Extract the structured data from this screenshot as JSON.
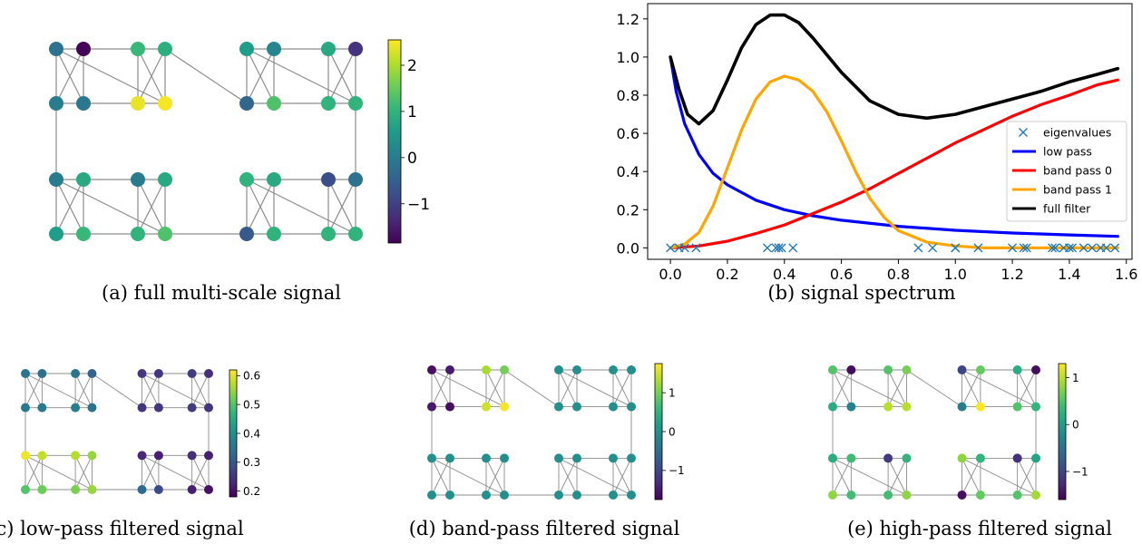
{
  "colors": {
    "edge": "#8c8c8c",
    "viridis": [
      "#440154",
      "#482878",
      "#3e4989",
      "#31688e",
      "#26828e",
      "#1f9e89",
      "#35b779",
      "#6ece58",
      "#b5de2b",
      "#fde725"
    ]
  },
  "graphs": [
    {
      "caption": "(a) full multi-scale signal",
      "colorbar": {
        "min": -1.85,
        "max": 2.55,
        "ticks": [
          {
            "v": 2,
            "label": "2"
          },
          {
            "v": 1,
            "label": "1"
          },
          {
            "v": 0,
            "label": "0"
          },
          {
            "v": -1,
            "label": "−1"
          }
        ]
      },
      "node_values": [
        -0.2,
        -1.8,
        1.1,
        0.9,
        0.6,
        0.2,
        0.8,
        -1.2,
        0,
        -0.1,
        2.4,
        2.5,
        -0.4,
        1.3,
        1.0,
        1.0,
        0,
        0.8,
        0,
        0.8,
        1.0,
        0.8,
        -0.8,
        -0.2,
        0.6,
        1.1,
        1.0,
        1.3,
        -0.6,
        1.0,
        1.0,
        1.0
      ]
    },
    {
      "caption": "(c) low-pass filtered signal",
      "colorbar": {
        "min": 0.18,
        "max": 0.62,
        "ticks": [
          {
            "v": 0.6,
            "label": "0.6"
          },
          {
            "v": 0.5,
            "label": "0.5"
          },
          {
            "v": 0.4,
            "label": "0.4"
          },
          {
            "v": 0.3,
            "label": "0.3"
          },
          {
            "v": 0.2,
            "label": "0.2"
          }
        ]
      },
      "node_values": [
        0.35,
        0.34,
        0.35,
        0.32,
        0.25,
        0.25,
        0.26,
        0.24,
        0.36,
        0.36,
        0.37,
        0.35,
        0.25,
        0.25,
        0.26,
        0.25,
        0.61,
        0.58,
        0.57,
        0.55,
        0.23,
        0.22,
        0.24,
        0.22,
        0.5,
        0.52,
        0.53,
        0.55,
        0.33,
        0.28,
        0.22,
        0.2
      ]
    },
    {
      "caption": "(d) band-pass filtered signal",
      "colorbar": {
        "min": -1.75,
        "max": 1.75,
        "ticks": [
          {
            "v": 1,
            "label": "1"
          },
          {
            "v": 0,
            "label": "0"
          },
          {
            "v": -1,
            "label": "−1"
          }
        ]
      },
      "node_values": [
        -1.6,
        -1.5,
        1.3,
        1.0,
        0,
        0,
        0,
        0,
        -1.5,
        -1.6,
        1.5,
        1.7,
        0,
        0,
        0,
        0,
        0,
        0,
        0,
        0,
        0,
        0,
        0,
        0,
        0,
        0,
        0,
        0,
        0,
        0,
        0,
        0
      ]
    },
    {
      "caption": "(e) high-pass filtered signal",
      "colorbar": {
        "min": -1.6,
        "max": 1.3,
        "ticks": [
          {
            "v": 1,
            "label": "1"
          },
          {
            "v": 0,
            "label": "0"
          },
          {
            "v": -1,
            "label": "−1"
          }
        ]
      },
      "node_values": [
        0.5,
        -1.5,
        0.5,
        0.7,
        -1.0,
        0.6,
        0.2,
        -1.5,
        0.2,
        -0.3,
        1.0,
        1.0,
        -0.4,
        1.3,
        0.5,
        0.3,
        0.2,
        0.4,
        -1.1,
        0.3,
        0.8,
        0.3,
        -1.2,
        0.1,
        0.8,
        0.4,
        0.4,
        0.8,
        -1.5,
        0.6,
        0.5,
        0.9
      ]
    }
  ],
  "chart_data": {
    "type": "line",
    "caption": "(b) signal spectrum",
    "xlim": [
      -0.08,
      1.62
    ],
    "ylim": [
      -0.06,
      1.28
    ],
    "xticks": [
      0.0,
      0.2,
      0.4,
      0.6,
      0.8,
      1.0,
      1.2,
      1.4,
      1.6
    ],
    "xticklabels": [
      "0.0",
      "0.2",
      "0.4",
      "0.6",
      "0.8",
      "1.0",
      "1.2",
      "1.4",
      "1.6"
    ],
    "yticks": [
      0.0,
      0.2,
      0.4,
      0.6,
      0.8,
      1.0,
      1.2
    ],
    "yticklabels": [
      "0.0",
      "0.2",
      "0.4",
      "0.6",
      "0.8",
      "1.0",
      "1.2"
    ],
    "legend_position": "center-right",
    "eigenvalues": {
      "name": "eigenvalues",
      "color": "#1f77b4",
      "x": [
        0.0,
        0.03,
        0.05,
        0.09,
        0.34,
        0.37,
        0.38,
        0.39,
        0.43,
        0.87,
        0.92,
        1.0,
        1.0,
        1.08,
        1.2,
        1.24,
        1.25,
        1.34,
        1.35,
        1.38,
        1.4,
        1.41,
        1.45,
        1.48,
        1.51,
        1.53,
        1.56
      ]
    },
    "series": [
      {
        "name": "low pass",
        "color": "#0000ff",
        "x": [
          0,
          0.02,
          0.05,
          0.1,
          0.15,
          0.2,
          0.3,
          0.4,
          0.5,
          0.6,
          0.8,
          1.0,
          1.2,
          1.4,
          1.57
        ],
        "y": [
          1.0,
          0.82,
          0.65,
          0.49,
          0.39,
          0.33,
          0.25,
          0.2,
          0.168,
          0.145,
          0.113,
          0.092,
          0.078,
          0.068,
          0.06
        ]
      },
      {
        "name": "band pass 0",
        "color": "#ff0000",
        "x": [
          0,
          0.1,
          0.2,
          0.3,
          0.4,
          0.5,
          0.6,
          0.7,
          0.8,
          0.9,
          1.0,
          1.1,
          1.2,
          1.3,
          1.4,
          1.5,
          1.57
        ],
        "y": [
          0.0,
          0.01,
          0.035,
          0.075,
          0.12,
          0.18,
          0.24,
          0.31,
          0.39,
          0.47,
          0.55,
          0.62,
          0.69,
          0.75,
          0.8,
          0.855,
          0.88
        ]
      },
      {
        "name": "band pass 1",
        "color": "#ffa500",
        "x": [
          0,
          0.05,
          0.1,
          0.15,
          0.2,
          0.25,
          0.3,
          0.35,
          0.4,
          0.45,
          0.5,
          0.55,
          0.6,
          0.65,
          0.7,
          0.75,
          0.8,
          0.9,
          1.0,
          1.1,
          1.2,
          1.3,
          1.4,
          1.5,
          1.57
        ],
        "y": [
          0.0,
          0.02,
          0.08,
          0.22,
          0.42,
          0.62,
          0.78,
          0.87,
          0.9,
          0.88,
          0.82,
          0.71,
          0.56,
          0.4,
          0.26,
          0.16,
          0.09,
          0.03,
          0.01,
          0.0,
          0.0,
          0.0,
          0.0,
          0.0,
          0.0
        ]
      },
      {
        "name": "full filter",
        "color": "#000000",
        "x": [
          0,
          0.03,
          0.06,
          0.1,
          0.15,
          0.2,
          0.25,
          0.3,
          0.35,
          0.4,
          0.45,
          0.5,
          0.6,
          0.7,
          0.8,
          0.9,
          1.0,
          1.1,
          1.2,
          1.3,
          1.4,
          1.5,
          1.57
        ],
        "y": [
          1.0,
          0.83,
          0.7,
          0.65,
          0.72,
          0.88,
          1.05,
          1.17,
          1.22,
          1.22,
          1.18,
          1.1,
          0.92,
          0.77,
          0.7,
          0.68,
          0.7,
          0.74,
          0.78,
          0.82,
          0.87,
          0.91,
          0.94
        ]
      }
    ]
  }
}
